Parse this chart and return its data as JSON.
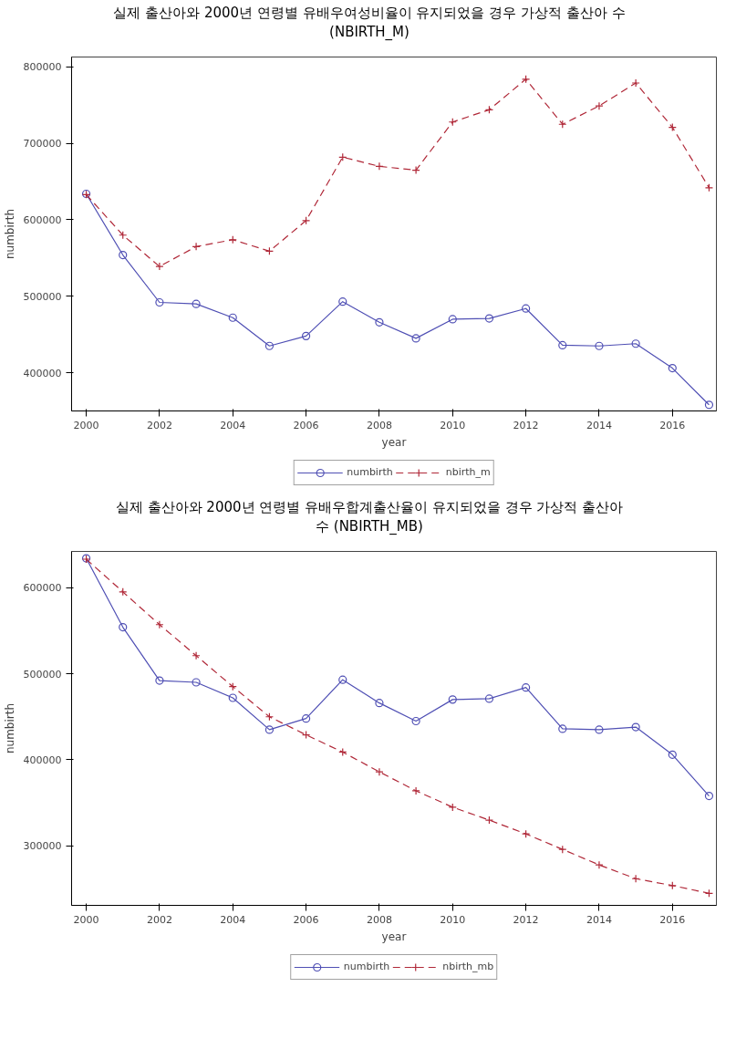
{
  "chart_data": [
    {
      "type": "line",
      "title": "실제 출산아와 2000년 연령별 유배우여성비율이 유지되었을 경우 가상적 출산아 수\n(NBIRTH_M)",
      "xlabel": "year",
      "ylabel": "numbirth",
      "x": [
        2000,
        2001,
        2002,
        2003,
        2004,
        2005,
        2006,
        2007,
        2008,
        2009,
        2010,
        2011,
        2012,
        2013,
        2014,
        2015,
        2016,
        2017
      ],
      "xlim": [
        1999.6,
        2017.2
      ],
      "ylim": [
        350000,
        813000
      ],
      "xticks": [
        2000,
        2002,
        2004,
        2006,
        2008,
        2010,
        2012,
        2014,
        2016
      ],
      "yticks": [
        400000,
        500000,
        600000,
        700000,
        800000
      ],
      "grid": false,
      "legend": "bottom",
      "series": [
        {
          "name": "numbirth",
          "color": "#4f4fb4",
          "marker": "circle",
          "line_style": "solid",
          "values": [
            634000,
            554000,
            492000,
            490000,
            472000,
            435000,
            448000,
            493000,
            466000,
            445000,
            470000,
            471000,
            484000,
            436000,
            435000,
            438000,
            406000,
            358000
          ]
        },
        {
          "name": "nbirth_m",
          "color": "#b02838",
          "marker": "cross",
          "line_style": "dashed",
          "values": [
            633000,
            580000,
            539000,
            565000,
            574000,
            559000,
            599000,
            682000,
            670000,
            665000,
            728000,
            744000,
            784000,
            725000,
            749000,
            779000,
            721000,
            642000
          ]
        }
      ]
    },
    {
      "type": "line",
      "title": "실제 출산아와 2000년 연령별 유배우합계출산율이 유지되었을 경우 가상적 출산아\n수 (NBIRTH_MB)",
      "xlabel": "year",
      "ylabel": "numbirth",
      "x": [
        2000,
        2001,
        2002,
        2003,
        2004,
        2005,
        2006,
        2007,
        2008,
        2009,
        2010,
        2011,
        2012,
        2013,
        2014,
        2015,
        2016,
        2017
      ],
      "xlim": [
        1999.6,
        2017.2
      ],
      "ylim": [
        231000,
        642000
      ],
      "xticks": [
        2000,
        2002,
        2004,
        2006,
        2008,
        2010,
        2012,
        2014,
        2016
      ],
      "yticks": [
        300000,
        400000,
        500000,
        600000
      ],
      "grid": false,
      "legend": "bottom",
      "series": [
        {
          "name": "numbirth",
          "color": "#4f4fb4",
          "marker": "circle",
          "line_style": "solid",
          "values": [
            634000,
            554000,
            492000,
            490000,
            472000,
            435000,
            448000,
            493000,
            466000,
            445000,
            470000,
            471000,
            484000,
            436000,
            435000,
            438000,
            406000,
            358000
          ]
        },
        {
          "name": "nbirth_mb",
          "color": "#b02838",
          "marker": "cross",
          "line_style": "dashed",
          "values": [
            633000,
            595000,
            557000,
            521000,
            485000,
            450000,
            429000,
            409000,
            386000,
            364000,
            345000,
            330000,
            314000,
            296000,
            278000,
            262000,
            254000,
            245000
          ]
        }
      ]
    }
  ]
}
